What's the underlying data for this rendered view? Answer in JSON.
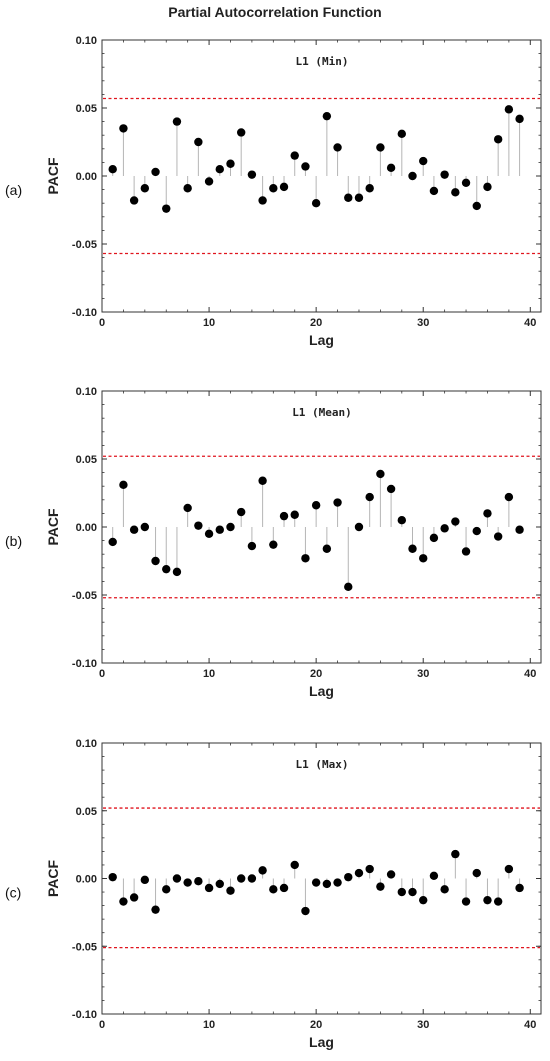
{
  "figure_title": "Partial Autocorrelation Function",
  "panel_tags": [
    "(a)",
    "(b)",
    "(c)"
  ],
  "colors": {
    "point": "#000000",
    "stem": "#b5b5b5",
    "frame": "#333333",
    "threshold": "#e0141e"
  },
  "chart_data": [
    {
      "type": "scatter",
      "style": "stem",
      "title": "L1 (Min)",
      "xlabel": "Lag",
      "ylabel": "PACF",
      "xlim": [
        0,
        41
      ],
      "ylim": [
        -0.1,
        0.1
      ],
      "xticks": [
        0,
        10,
        20,
        30,
        40
      ],
      "yticks": [
        0.1,
        0.05,
        0.0,
        -0.05,
        -0.1
      ],
      "ytick_labels": [
        "0.10",
        "0.05",
        "0.00",
        "-0.05",
        "-0.10"
      ],
      "thresholds": [
        0.057,
        -0.057
      ],
      "x": [
        1,
        2,
        3,
        4,
        5,
        6,
        7,
        8,
        9,
        10,
        11,
        12,
        13,
        14,
        15,
        16,
        17,
        18,
        19,
        20,
        21,
        22,
        23,
        24,
        25,
        26,
        27,
        28,
        29,
        30,
        31,
        32,
        33,
        34,
        35,
        36,
        37,
        38,
        39
      ],
      "y": [
        0.005,
        0.035,
        -0.018,
        -0.009,
        0.003,
        -0.024,
        0.04,
        -0.009,
        0.025,
        -0.004,
        0.005,
        0.009,
        0.032,
        0.001,
        -0.018,
        -0.009,
        -0.008,
        0.015,
        0.007,
        -0.02,
        0.044,
        0.021,
        -0.016,
        -0.016,
        -0.009,
        0.021,
        0.006,
        0.031,
        0.0,
        0.011,
        -0.011,
        0.001,
        -0.012,
        -0.005,
        -0.022,
        -0.008,
        0.027,
        0.049,
        0.042
      ]
    },
    {
      "type": "scatter",
      "style": "stem",
      "title": "L1 (Mean)",
      "xlabel": "Lag",
      "ylabel": "PACF",
      "xlim": [
        0,
        41
      ],
      "ylim": [
        -0.1,
        0.1
      ],
      "xticks": [
        0,
        10,
        20,
        30,
        40
      ],
      "yticks": [
        0.1,
        0.05,
        0.0,
        -0.05,
        -0.1
      ],
      "ytick_labels": [
        "0.10",
        "0.05",
        "0.00",
        "-0.05",
        "-0.10"
      ],
      "thresholds": [
        0.052,
        -0.052
      ],
      "x": [
        1,
        2,
        3,
        4,
        5,
        6,
        7,
        8,
        9,
        10,
        11,
        12,
        13,
        14,
        15,
        16,
        17,
        18,
        19,
        20,
        21,
        22,
        23,
        24,
        25,
        26,
        27,
        28,
        29,
        30,
        31,
        32,
        33,
        34,
        35,
        36,
        37,
        38,
        39
      ],
      "y": [
        -0.011,
        0.031,
        -0.002,
        0.0,
        -0.025,
        -0.031,
        -0.033,
        0.014,
        0.001,
        -0.005,
        -0.002,
        0.0,
        0.011,
        -0.014,
        0.034,
        -0.013,
        0.008,
        0.009,
        -0.023,
        0.016,
        -0.016,
        0.018,
        -0.044,
        0.0,
        0.022,
        0.039,
        0.028,
        0.005,
        -0.016,
        -0.023,
        -0.008,
        -0.001,
        0.004,
        -0.018,
        -0.003,
        0.01,
        -0.007,
        0.022,
        -0.002
      ]
    },
    {
      "type": "scatter",
      "style": "stem",
      "title": "L1 (Max)",
      "xlabel": "Lag",
      "ylabel": "PACF",
      "xlim": [
        0,
        41
      ],
      "ylim": [
        -0.1,
        0.1
      ],
      "xticks": [
        0,
        10,
        20,
        30,
        40
      ],
      "yticks": [
        0.1,
        0.05,
        0.0,
        -0.05,
        -0.1
      ],
      "ytick_labels": [
        "0.10",
        "0.05",
        "0.00",
        "-0.05",
        "-0.10"
      ],
      "thresholds": [
        0.052,
        -0.051
      ],
      "x": [
        1,
        2,
        3,
        4,
        5,
        6,
        7,
        8,
        9,
        10,
        11,
        12,
        13,
        14,
        15,
        16,
        17,
        18,
        19,
        20,
        21,
        22,
        23,
        24,
        25,
        26,
        27,
        28,
        29,
        30,
        31,
        32,
        33,
        34,
        35,
        36,
        37,
        38,
        39
      ],
      "y": [
        0.001,
        -0.017,
        -0.014,
        -0.001,
        -0.023,
        -0.008,
        0.0,
        -0.003,
        -0.002,
        -0.007,
        -0.004,
        -0.009,
        0.0,
        0.0,
        0.006,
        -0.008,
        -0.007,
        0.01,
        -0.024,
        -0.003,
        -0.004,
        -0.003,
        0.001,
        0.004,
        0.007,
        -0.006,
        0.003,
        -0.01,
        -0.01,
        -0.016,
        0.002,
        -0.008,
        0.018,
        -0.017,
        0.004,
        -0.016,
        -0.017,
        0.007,
        -0.007
      ]
    }
  ]
}
